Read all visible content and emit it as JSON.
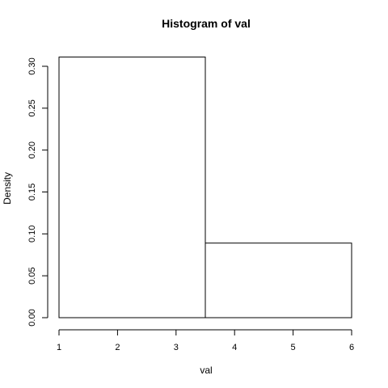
{
  "chart_data": {
    "type": "bar",
    "title": "Histogram of val",
    "xlabel": "val",
    "ylabel": "Density",
    "bins": [
      {
        "start": 1,
        "end": 3.5,
        "density": 0.311
      },
      {
        "start": 3.5,
        "end": 6,
        "density": 0.089
      }
    ],
    "x_ticks": [
      1,
      2,
      3,
      4,
      5,
      6
    ],
    "y_ticks": [
      "0.00",
      "0.05",
      "0.10",
      "0.15",
      "0.20",
      "0.25",
      "0.30"
    ],
    "xlim": [
      1,
      6
    ],
    "ylim": [
      0,
      0.3
    ],
    "grid": false
  }
}
